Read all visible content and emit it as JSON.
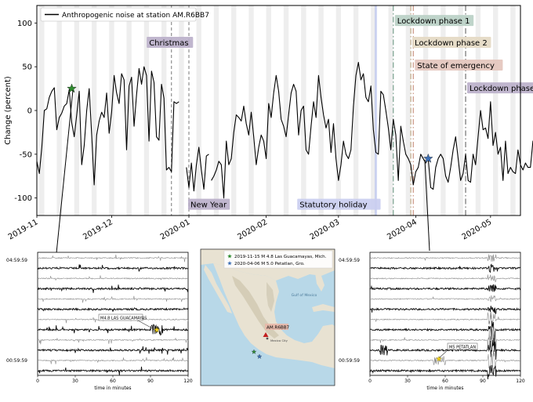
{
  "chart_data": [
    {
      "type": "line",
      "ylabel": "Change (percent)",
      "ylim": [
        -120,
        120
      ],
      "yticks": [
        100,
        50,
        0,
        -50,
        -100
      ],
      "xlim": [
        "2019-11-01",
        "2020-05-13"
      ],
      "xticks": [
        "2019-11",
        "2019-12",
        "2020-01",
        "2020-02",
        "2020-03",
        "2020-04",
        "2020-05"
      ],
      "grid": false,
      "weekend_shading": true,
      "legend": {
        "position": "top-left",
        "label": "Anthropogenic noise at station AM.R6BB7"
      },
      "series": [
        {
          "name": "Anthropogenic noise at station AM.R6BB7",
          "color": "#000000",
          "segments": [
            {
              "start": "2019-11-01",
              "values": [
                -58,
                -72,
                -42,
                0,
                2,
                15,
                22,
                26,
                -22,
                -8,
                -3,
                5,
                8,
                24,
                -14,
                -30,
                -5,
                22,
                -62,
                -40,
                0,
                25,
                -28,
                -85,
                -28,
                -12,
                -2,
                -8,
                20,
                -26,
                -2,
                40,
                20,
                8,
                42,
                35,
                -45,
                28,
                38,
                -18,
                18,
                48,
                30,
                50,
                40,
                -35,
                45,
                32,
                -30,
                -34,
                30,
                14,
                -68,
                -65,
                -70,
                10,
                8,
                10
              ]
            },
            {
              "start": "2019-12-31",
              "values": [
                -65,
                -88,
                -60,
                -92,
                -62,
                -42,
                -68,
                -90,
                -52,
                -50
              ]
            },
            {
              "start": "2020-01-10",
              "values": [
                -80,
                -75,
                -68,
                -58,
                -62,
                -100,
                -35,
                -62,
                -55,
                -25,
                -5,
                -8,
                -12,
                5,
                -15,
                -28,
                -2,
                -30,
                -62,
                -42,
                -28,
                -35,
                -55,
                8,
                -8,
                20,
                40,
                22,
                -10,
                -18,
                -30,
                -5,
                20,
                30,
                22,
                -28,
                0,
                5,
                -45,
                -50,
                -18,
                10,
                -8,
                40,
                15,
                -5,
                -20,
                -10,
                -48,
                -15,
                -55,
                -80,
                -62,
                -35,
                -50,
                -55,
                -45,
                5,
                40,
                55,
                35,
                42,
                15,
                10,
                28,
                -22,
                -48,
                -50,
                22,
                18,
                0,
                -20,
                -45,
                -10,
                -28,
                -80,
                -18,
                -35,
                -50,
                -55,
                -62,
                -85,
                -70,
                -65,
                -50,
                -55,
                -60,
                -55,
                -88,
                -90,
                -65,
                -55,
                -50,
                -55,
                -75,
                -82,
                -65,
                -45,
                -30,
                -55,
                -80,
                -72,
                -50,
                -80,
                -82,
                -50,
                -62,
                -30,
                0,
                -22,
                -20,
                -32,
                10,
                -40,
                -25,
                -50,
                -42,
                -80,
                -35,
                -72,
                -65,
                -70,
                -72,
                -45,
                -62,
                -68,
                -60,
                -65,
                -65,
                -35,
                -48,
                -40,
                -45
              ]
            }
          ]
        }
      ],
      "markers": [
        {
          "date": "2019-11-15",
          "value": 25,
          "color": "#2e8b2e",
          "shape": "star"
        },
        {
          "date": "2020-04-06",
          "value": -55,
          "color": "#3d6fb5",
          "shape": "star"
        }
      ],
      "events": [
        {
          "label": "Christmas",
          "date": "2019-12-25",
          "line_style": "dashed",
          "line_color": "#7a7a7a",
          "label_color": "#b9aec9",
          "label_value": 77
        },
        {
          "label": "New Year",
          "date": "2020-01-01",
          "line_style": "dashed",
          "line_color": "#7a7a7a",
          "label_color": "#b9aec9",
          "label_value": -108
        },
        {
          "label": "Statutory holiday",
          "date": "2020-03-16",
          "line_style": "none",
          "line_color": "#9aa8e8",
          "label_color": "#c9cdf0",
          "label_value": -108
        },
        {
          "label": "Lockdown phase 1",
          "date": "2020-03-23",
          "line_style": "dashdot",
          "line_color": "#5f8f7a",
          "label_color": "#b8cfc4",
          "label_value": 102
        },
        {
          "label": "Lockdown phase 2",
          "date": "2020-03-30",
          "line_style": "dashdot",
          "line_color": "#b39a6e",
          "label_color": "#e3d8c2",
          "label_value": 77
        },
        {
          "label": "State of emergency",
          "date": "2020-03-31",
          "line_style": "dashdot",
          "line_color": "#c07f6b",
          "label_color": "#e3c4bb",
          "label_value": 51
        },
        {
          "label": "Lockdown phase 3",
          "date": "2020-04-21",
          "line_style": "dashdot",
          "line_color": "#555555",
          "label_color": "#b9aec9",
          "label_value": 25
        }
      ]
    },
    {
      "type": "line",
      "panel": "left-seismogram",
      "xlabel": "time in minutes",
      "xlim": [
        0,
        120
      ],
      "xticks": [
        0,
        30,
        60,
        90,
        120
      ],
      "row_labels": [
        "04:59:59",
        "00:59:59"
      ],
      "annotation": "M4.8 LAS GUACAMAYAS",
      "marker_minute": 95,
      "marker_color": "#f2d21b"
    },
    {
      "type": "line",
      "panel": "right-seismogram",
      "xlabel": "time in minutes",
      "xlim": [
        0,
        120
      ],
      "xticks": [
        0,
        30,
        60,
        90,
        120
      ],
      "row_labels": [
        "04:59:59",
        "00:59:59"
      ],
      "annotation": "M5 PETATLAN",
      "marker_minute": 55,
      "marker_color": "#f2d21b"
    }
  ],
  "map": {
    "legend": [
      {
        "label": "2019-11-15 M 4.8 Las Guacamayas, Mich.",
        "color": "#2e8b2e"
      },
      {
        "label": "2020-04-06 M 5.0 Petatlan, Gro.",
        "color": "#3d6fb5"
      }
    ],
    "station_label": "AM.R6BB7",
    "places": [
      {
        "label": "Mexico City",
        "kind": "city"
      },
      {
        "label": "Gulf of Mexico",
        "kind": "water"
      }
    ],
    "colors": {
      "ocean": "#b8d8e8",
      "land": "#e8e2d2",
      "mountains": "#cfc8b0",
      "station": "#c22020"
    }
  }
}
